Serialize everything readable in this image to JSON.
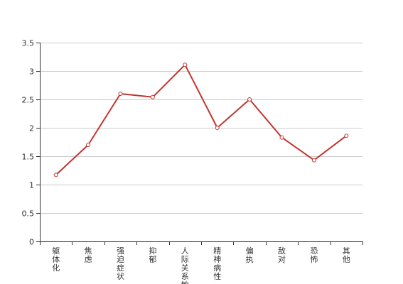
{
  "chart_data": {
    "type": "line",
    "categories": [
      "躯体化",
      "焦虑",
      "强迫症状",
      "抑郁",
      "人际关系敏感",
      "精神病性",
      "偏执",
      "敌对",
      "恐怖",
      "其他"
    ],
    "series": [
      {
        "values": [
          1.17,
          1.7,
          2.6,
          2.54,
          3.11,
          2.0,
          2.5,
          1.83,
          1.43,
          1.86
        ]
      }
    ],
    "ylim": [
      0,
      3.5
    ],
    "yticks": [
      0,
      0.5,
      1,
      1.5,
      2,
      2.5,
      3,
      3.5
    ],
    "ytick_labels": [
      "0",
      "0.5",
      "1",
      "1.5",
      "2",
      "2.5",
      "3",
      "3.5"
    ],
    "grid": true,
    "colors": {
      "series": "#c23531",
      "grid": "#cccccc",
      "axis": "#333333"
    }
  }
}
